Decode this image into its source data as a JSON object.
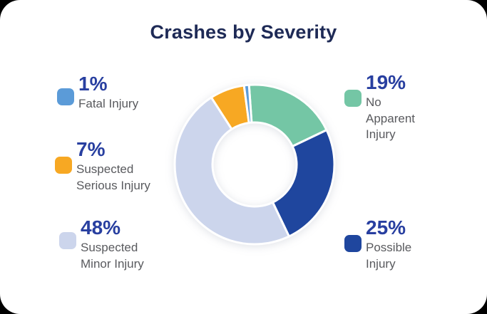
{
  "chart_data": {
    "type": "pie",
    "variant": "donut",
    "title": "Crashes by Severity",
    "unit": "%",
    "start_angle_deg": -4,
    "legend_position": "sides",
    "slices": [
      {
        "label": "No Apparent Injury",
        "value": 19,
        "color": "#74C6A5"
      },
      {
        "label": "Possible Injury",
        "value": 25,
        "color": "#1F469E"
      },
      {
        "label": "Suspected Minor Injury",
        "value": 48,
        "color": "#CCD5EC"
      },
      {
        "label": "Suspected Serious Injury",
        "value": 7,
        "color": "#F7A823"
      },
      {
        "label": "Fatal Injury",
        "value": 1,
        "color": "#5B9BD8"
      }
    ]
  },
  "legend": {
    "items": [
      {
        "percent": "1%",
        "label": "Fatal Injury",
        "color": "#5B9BD8"
      },
      {
        "percent": "7%",
        "label": "Suspected\nSerious Injury",
        "color": "#F7A823"
      },
      {
        "percent": "48%",
        "label": "Suspected\nMinor Injury",
        "color": "#CCD5EC"
      },
      {
        "percent": "19%",
        "label": "No\nApparent\nInjury",
        "color": "#74C6A5"
      },
      {
        "percent": "25%",
        "label": "Possible\nInjury",
        "color": "#1F469E"
      }
    ]
  },
  "colors": {
    "title_navy": "#1E2A56",
    "percent_blue": "#283FA0",
    "label_gray": "#595A5E",
    "card_background": "#FFFFFF"
  }
}
